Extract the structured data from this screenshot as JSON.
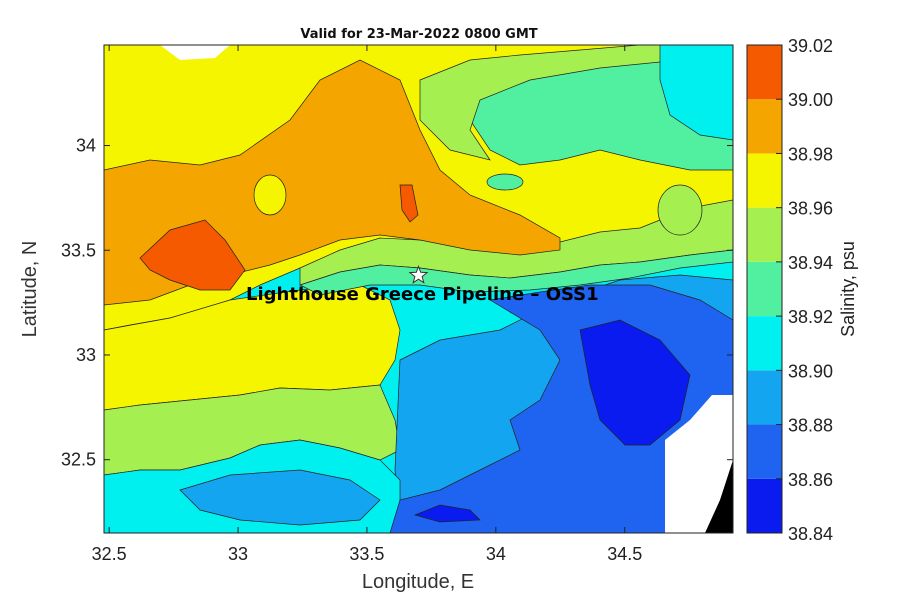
{
  "chart_data": {
    "type": "heatmap",
    "title": "Valid for 23-Mar-2022 0800 GMT",
    "xlabel": "Longitude, E",
    "ylabel": "Latitude, N",
    "colorbar_label": "Salinity, psu",
    "xlim": [
      32.48,
      34.92
    ],
    "ylim": [
      32.15,
      34.48
    ],
    "xticks": [
      "32.5",
      "33",
      "33.5",
      "34",
      "34.5"
    ],
    "xtick_values": [
      32.5,
      33,
      33.5,
      34,
      34.5
    ],
    "yticks": [
      "32.5",
      "33",
      "33.5",
      "34"
    ],
    "ytick_values": [
      32.5,
      33,
      33.5,
      34
    ],
    "colorbar": {
      "levels": [
        "38.84",
        "38.86",
        "38.88",
        "38.90",
        "38.92",
        "38.94",
        "38.96",
        "38.98",
        "39.00",
        "39.02"
      ],
      "level_values": [
        38.84,
        38.86,
        38.88,
        38.9,
        38.92,
        38.94,
        38.96,
        38.98,
        39.0,
        39.02
      ],
      "colors": [
        "#0a1bf0",
        "#1e64f0",
        "#14a5f0",
        "#00f0f0",
        "#50f0a0",
        "#a5f050",
        "#f5f500",
        "#f5a500",
        "#f55a00"
      ]
    },
    "marker": {
      "label": "Lighthouse Greece Pipeline – OSS1",
      "lon": 33.7,
      "lat": 33.38,
      "symbol": "star"
    },
    "no_data_color": "#ffffff",
    "land_color": "#000000"
  }
}
